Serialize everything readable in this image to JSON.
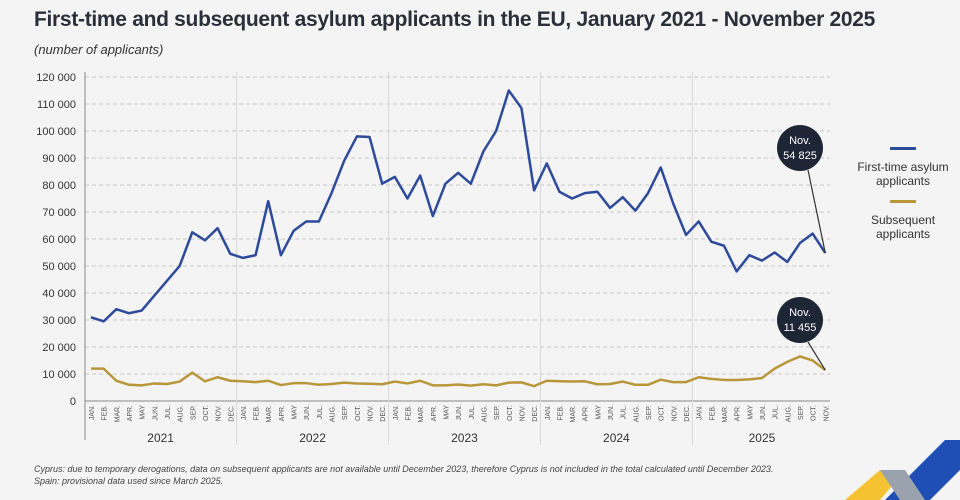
{
  "chart_data": {
    "type": "line",
    "title": "First-time and subsequent asylum applicants in the EU, January 2021 - November 2025",
    "subtitle": "(number of applicants)",
    "ylim": [
      0,
      120000
    ],
    "yticks": [
      "0",
      "10 000",
      "20 000",
      "30 000",
      "40 000",
      "50 000",
      "60 000",
      "70 000",
      "80 000",
      "90 000",
      "100 000",
      "110 000",
      "120 000"
    ],
    "months": [
      "JAN.",
      "FEB.",
      "MAR.",
      "APR.",
      "MAY",
      "JUN.",
      "JUL.",
      "AUG.",
      "SEP.",
      "OCT.",
      "NOV.",
      "DEC."
    ],
    "years": [
      "2021",
      "2022",
      "2023",
      "2024",
      "2025"
    ],
    "series": [
      {
        "name": "First-time asylum applicants",
        "color": "#2d4a9b",
        "values": [
          31000,
          29500,
          34000,
          32500,
          33500,
          39000,
          44500,
          50000,
          62500,
          59500,
          64000,
          54500,
          53000,
          54000,
          74000,
          54000,
          63000,
          66500,
          66500,
          77000,
          89000,
          98000,
          97800,
          80500,
          83000,
          75000,
          83500,
          68500,
          80500,
          84500,
          80500,
          92500,
          100000,
          115000,
          108500,
          78000,
          88000,
          77500,
          75000,
          77000,
          77500,
          71500,
          75500,
          70500,
          77000,
          86500,
          73000,
          61500,
          66500,
          59000,
          57500,
          48000,
          54000,
          52000,
          55000,
          51500,
          58500,
          62000,
          54825
        ]
      },
      {
        "name": "Subsequent applicants",
        "color": "#b8963a",
        "values": [
          12000,
          12000,
          7500,
          6000,
          5800,
          6500,
          6300,
          7200,
          10500,
          7300,
          8800,
          7500,
          7300,
          7000,
          7500,
          5900,
          6600,
          6600,
          6000,
          6300,
          6800,
          6500,
          6400,
          6200,
          7200,
          6500,
          7500,
          5800,
          5800,
          6100,
          5700,
          6200,
          5800,
          6800,
          6900,
          5500,
          7500,
          7300,
          7200,
          7300,
          6200,
          6300,
          7200,
          6000,
          6000,
          7900,
          7000,
          7000,
          8800,
          8200,
          7800,
          7800,
          8000,
          8500,
          12000,
          14500,
          16500,
          15000,
          11455
        ]
      }
    ],
    "annotations": [
      {
        "month": "Nov.",
        "value": "54 825"
      },
      {
        "month": "Nov.",
        "value": "11 455"
      }
    ],
    "legend": [
      "First-time\nasylum applicants",
      "Subsequent\napplicants"
    ],
    "legend_placement": "right"
  },
  "footnotes": [
    "Cyprus: due to temporary derogations, data on subsequent applicants are not available until December 2023, therefore Cyprus is not included in the total calculated until December 2023.",
    "Spain: provisional data used since March 2025."
  ]
}
